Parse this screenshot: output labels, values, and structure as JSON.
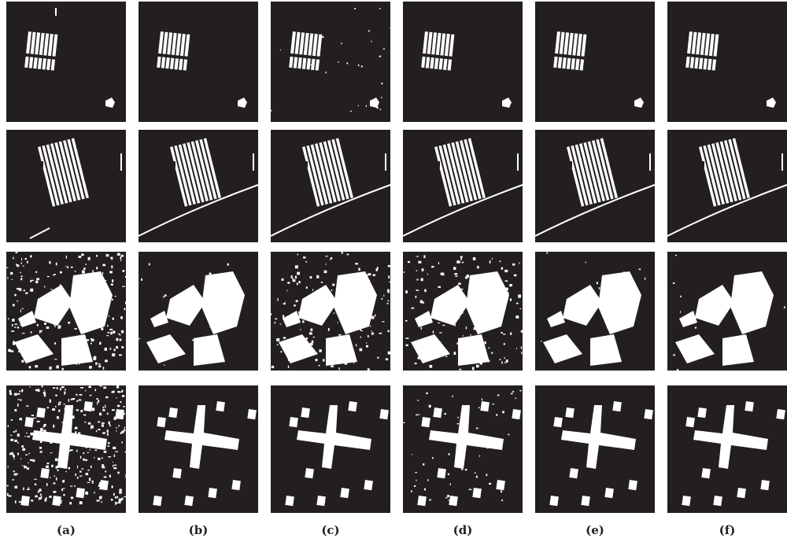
{
  "columns": [
    "(a)",
    "(b)",
    "(c)",
    "(d)",
    "(e)",
    "(f)"
  ]
}
